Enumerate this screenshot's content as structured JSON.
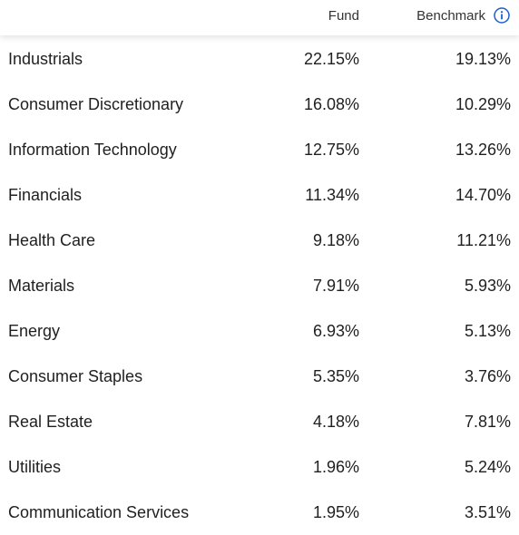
{
  "header": {
    "fund_label": "Fund",
    "benchmark_label": "Benchmark",
    "info_icon": "info-circle-icon",
    "accent_color": "#1a5fd0"
  },
  "rows": [
    {
      "sector": "Industrials",
      "fund": "22.15%",
      "benchmark": "19.13%"
    },
    {
      "sector": "Consumer Discretionary",
      "fund": "16.08%",
      "benchmark": "10.29%"
    },
    {
      "sector": "Information Technology",
      "fund": "12.75%",
      "benchmark": "13.26%"
    },
    {
      "sector": "Financials",
      "fund": "11.34%",
      "benchmark": "14.70%"
    },
    {
      "sector": "Health Care",
      "fund": "9.18%",
      "benchmark": "11.21%"
    },
    {
      "sector": "Materials",
      "fund": "7.91%",
      "benchmark": "5.93%"
    },
    {
      "sector": "Energy",
      "fund": "6.93%",
      "benchmark": "5.13%"
    },
    {
      "sector": "Consumer Staples",
      "fund": "5.35%",
      "benchmark": "3.76%"
    },
    {
      "sector": "Real Estate",
      "fund": "4.18%",
      "benchmark": "7.81%"
    },
    {
      "sector": "Utilities",
      "fund": "1.96%",
      "benchmark": "5.24%"
    },
    {
      "sector": "Communication Services",
      "fund": "1.95%",
      "benchmark": "3.51%"
    }
  ]
}
